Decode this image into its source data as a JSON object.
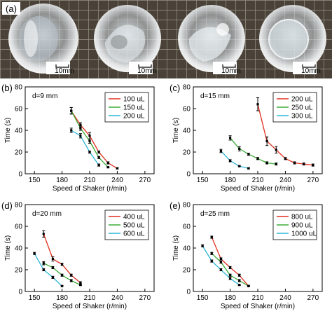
{
  "figure": {
    "photo_panel_label": "(a)",
    "scale_bar_label": "10mm",
    "scale_bar_count": 4
  },
  "chart_data": [
    {
      "panel": "(b)",
      "type": "line",
      "annotation": "d=9 mm",
      "xlabel": "Speed of Shaker (r/min)",
      "ylabel": "Time (s)",
      "xlim": [
        140,
        280
      ],
      "ylim": [
        0,
        80
      ],
      "xticks": [
        150,
        180,
        210,
        240,
        270
      ],
      "yticks": [
        0,
        20,
        40,
        60,
        80
      ],
      "legend_position": "top-right",
      "series": [
        {
          "name": "100 uL",
          "color": "#e0301e",
          "x": [
            190,
            200,
            210,
            220,
            230,
            240
          ],
          "y": [
            58,
            45,
            35,
            20,
            10,
            5
          ],
          "err": [
            3,
            2,
            3,
            1,
            1,
            0.5
          ]
        },
        {
          "name": "150 uL",
          "color": "#3aaa35",
          "x": [
            190,
            200,
            210,
            220,
            230
          ],
          "y": [
            58,
            42,
            30,
            15,
            6
          ],
          "err": [
            3,
            2,
            2,
            1,
            0.5
          ]
        },
        {
          "name": "200 uL",
          "color": "#2bb5d8",
          "x": [
            190,
            200,
            210,
            220
          ],
          "y": [
            40,
            35,
            20,
            8
          ],
          "err": [
            2,
            2,
            1,
            1
          ]
        }
      ]
    },
    {
      "panel": "(c)",
      "type": "line",
      "annotation": "d=15 mm",
      "xlabel": "Speed of Shaker (r/min)",
      "ylabel": "Time (s)",
      "xlim": [
        140,
        280
      ],
      "ylim": [
        0,
        80
      ],
      "xticks": [
        150,
        180,
        210,
        240,
        270
      ],
      "yticks": [
        0,
        20,
        40,
        60,
        80
      ],
      "legend_position": "top-right",
      "series": [
        {
          "name": "200 uL",
          "color": "#e0301e",
          "x": [
            210,
            220,
            230,
            240,
            250,
            260,
            270
          ],
          "y": [
            64,
            30,
            22,
            14,
            10,
            9,
            8
          ],
          "err": [
            6,
            4,
            3,
            1,
            1,
            1,
            1
          ]
        },
        {
          "name": "250 uL",
          "color": "#3aaa35",
          "x": [
            180,
            190,
            200,
            210,
            220,
            230
          ],
          "y": [
            33,
            23,
            18,
            14,
            10,
            9
          ],
          "err": [
            2,
            2,
            1,
            1,
            1,
            1
          ]
        },
        {
          "name": "300 uL",
          "color": "#2bb5d8",
          "x": [
            170,
            180,
            190,
            200
          ],
          "y": [
            21,
            12,
            7,
            5
          ],
          "err": [
            1.5,
            1,
            0.5,
            0.5
          ]
        }
      ]
    },
    {
      "panel": "(d)",
      "type": "line",
      "annotation": "d=20 mm",
      "xlabel": "Speed of Shaker (r/min)",
      "ylabel": "Time (s)",
      "xlim": [
        140,
        280
      ],
      "ylim": [
        0,
        80
      ],
      "xticks": [
        150,
        180,
        210,
        240,
        270
      ],
      "yticks": [
        0,
        20,
        40,
        60,
        80
      ],
      "legend_position": "top-right",
      "series": [
        {
          "name": "400 uL",
          "color": "#e0301e",
          "x": [
            160,
            170,
            180,
            190,
            200
          ],
          "y": [
            53,
            30,
            25,
            15,
            8
          ],
          "err": [
            3,
            2,
            1,
            1,
            1
          ]
        },
        {
          "name": "500 uL",
          "color": "#3aaa35",
          "x": [
            160,
            170,
            180,
            190,
            200
          ],
          "y": [
            26,
            22,
            15,
            10,
            6
          ],
          "err": [
            1.5,
            1,
            1,
            1,
            0.5
          ]
        },
        {
          "name": "600 uL",
          "color": "#2bb5d8",
          "x": [
            150,
            160,
            170,
            180
          ],
          "y": [
            35,
            20,
            13,
            5
          ],
          "err": [
            1,
            1,
            1,
            0.5
          ]
        }
      ]
    },
    {
      "panel": "(e)",
      "type": "line",
      "annotation": "d=25 mm",
      "xlabel": "Speed of Shaker (r/min)",
      "ylabel": "Time (s)",
      "xlim": [
        140,
        280
      ],
      "ylim": [
        0,
        80
      ],
      "xticks": [
        150,
        180,
        210,
        240,
        270
      ],
      "yticks": [
        0,
        20,
        40,
        60,
        80
      ],
      "legend_position": "top-right",
      "series": [
        {
          "name": "800 uL",
          "color": "#e0301e",
          "x": [
            160,
            170,
            180,
            190,
            200
          ],
          "y": [
            50,
            30,
            22,
            15,
            5
          ],
          "err": [
            1,
            1,
            1,
            1,
            0.5
          ]
        },
        {
          "name": "900 uL",
          "color": "#3aaa35",
          "x": [
            160,
            170,
            180,
            190,
            200
          ],
          "y": [
            35,
            27,
            15,
            10,
            5
          ],
          "err": [
            1,
            1,
            1,
            1,
            0.5
          ]
        },
        {
          "name": "1000 uL",
          "color": "#2bb5d8",
          "x": [
            150,
            160,
            170,
            180,
            190
          ],
          "y": [
            42,
            28,
            20,
            12,
            6
          ],
          "err": [
            1,
            1,
            1,
            1,
            0.5
          ]
        }
      ]
    }
  ]
}
